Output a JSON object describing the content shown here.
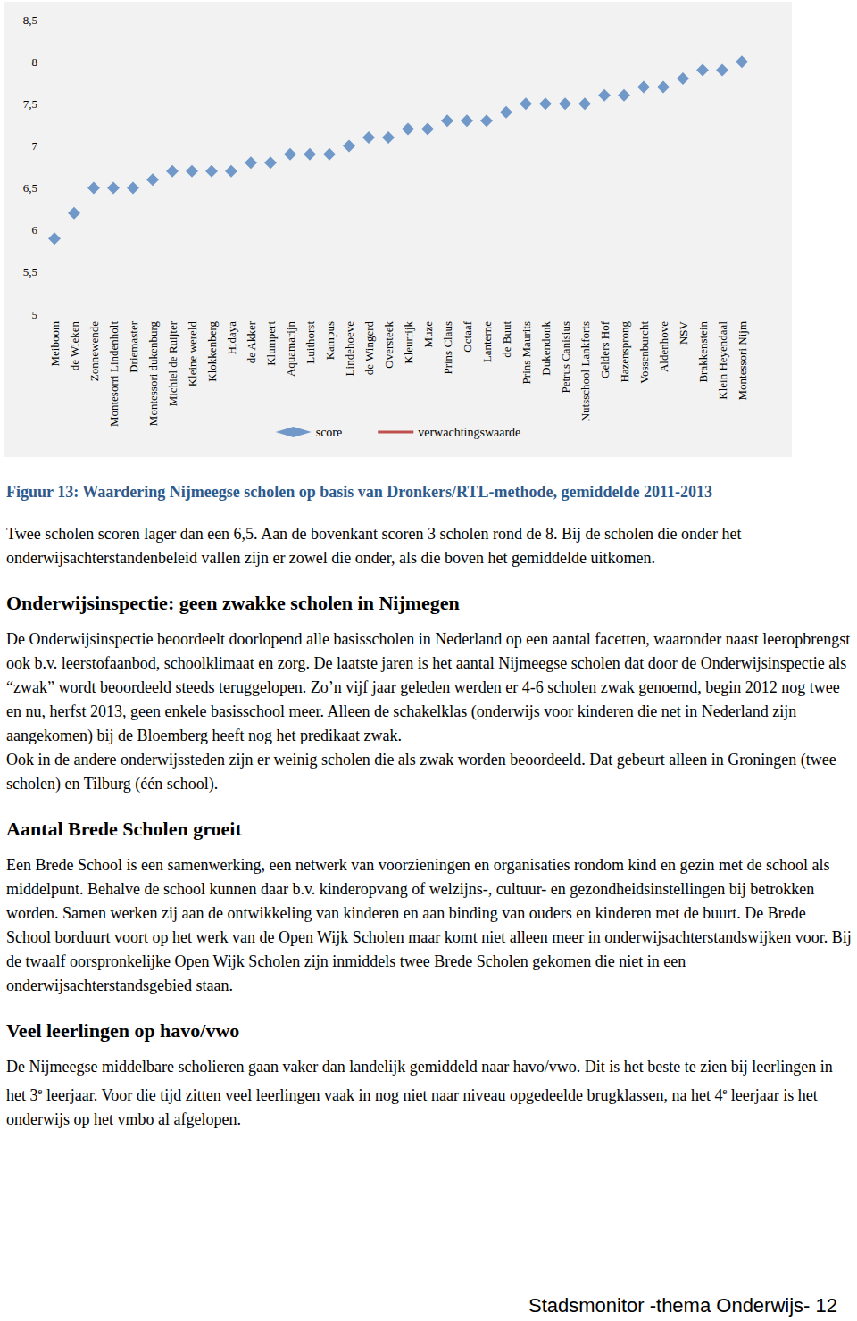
{
  "chart_data": {
    "type": "scatter",
    "categories": [
      "Meiboom",
      "de Wieken",
      "Zonnewende",
      "Montesorri Lindenholt",
      "Driemaster",
      "Montessori dukenburg",
      "Michiel de Ruijter",
      "Kleine wereld",
      "Klokkenberg",
      "Hidaya",
      "de Akker",
      "Klumpert",
      "Aquamarijn",
      "Luithorst",
      "Kampus",
      "Lindehoeve",
      "de Wingerd",
      "Oversteek",
      "Kleurrijk",
      "Muze",
      "Prins Claus",
      "Octaaf",
      "Lanterne",
      "de Buut",
      "Prins Maurits",
      "Dukendonk",
      "Petrus Canisius",
      "Nutsschool Lankforts",
      "Gelders Hof",
      "Hazensprong",
      "Vossenburcht",
      "Aldenhove",
      "NSV",
      "Brakkenstein",
      "Klein Heyendaal",
      "Montessori Nijm"
    ],
    "series": [
      {
        "name": "score",
        "color": "#4f81bd",
        "marker": "diamond",
        "values": [
          5.9,
          6.2,
          6.5,
          6.5,
          6.5,
          6.6,
          6.7,
          6.7,
          6.7,
          6.7,
          6.8,
          6.8,
          6.9,
          6.9,
          6.9,
          7.0,
          7.1,
          7.1,
          7.2,
          7.2,
          7.3,
          7.3,
          7.3,
          7.4,
          7.5,
          7.5,
          7.5,
          7.5,
          7.6,
          7.6,
          7.7,
          7.7,
          7.8,
          7.9,
          7.9,
          8.0
        ]
      },
      {
        "name": "verwachtingswaarde",
        "color": "#c0504d",
        "type": "line",
        "line_style": "solid",
        "values": [
          null,
          null,
          null,
          null,
          null,
          null,
          null,
          null,
          null,
          null,
          null,
          null,
          null,
          null,
          null,
          null,
          null,
          null,
          null,
          null,
          null,
          null,
          null,
          null,
          null,
          null,
          null,
          null,
          null,
          null,
          null,
          null,
          null,
          null,
          null,
          null
        ]
      }
    ],
    "ylim": [
      5,
      8.5
    ],
    "yticks": [
      5,
      {
        "value": 5.5,
        "label": "5,5"
      },
      6,
      {
        "value": 6.5,
        "label": "6,5"
      },
      7,
      {
        "value": 7.5,
        "label": "7,5"
      },
      8,
      {
        "value": 8.5,
        "label": "8,5"
      }
    ],
    "grid": false,
    "legend": "bottom"
  },
  "document": {
    "caption": "Figuur 13: Waardering Nijmeegse scholen op basis van Dronkers/RTL-methode, gemiddelde 2011-2013",
    "sections": [
      {
        "paragraphs": [
          "Twee scholen scoren lager dan een 6,5. Aan de bovenkant scoren 3 scholen rond de 8. Bij de scholen die onder het onderwijsachterstandenbeleid vallen zijn er zowel die onder, als die boven het gemiddelde uitkomen."
        ]
      },
      {
        "heading": "Onderwijsinspectie: geen zwakke scholen in Nijmegen",
        "paragraphs": [
          "De Onderwijsinspectie beoordeelt doorlopend alle basisscholen in Nederland op een aantal facetten, waaronder naast leeropbrengst ook b.v. leerstofaanbod, schoolklimaat en zorg. De laatste jaren is het aantal Nijmeegse scholen dat door de Onderwijsinspectie als “zwak” wordt beoordeeld steeds teruggelopen. Zo’n vijf jaar geleden werden er 4-6 scholen zwak genoemd, begin 2012 nog twee en nu, herfst 2013, geen enkele basisschool meer. Alleen de schakelklas (onderwijs voor kinderen die net in Nederland zijn aangekomen) bij de Bloemberg heeft nog het predikaat zwak.",
          "Ook in de andere onderwijssteden zijn er weinig scholen die als zwak worden beoordeeld. Dat gebeurt alleen in Groningen (twee scholen) en Tilburg (één school)."
        ]
      },
      {
        "heading": "Aantal Brede Scholen groeit",
        "paragraphs": [
          "Een Brede School is een samenwerking, een netwerk van voorzieningen en organisaties rondom kind en gezin met de school als middelpunt. Behalve de school kunnen daar b.v. kinderopvang of welzijns-, cultuur- en gezondheidsinstellingen bij betrokken worden. Samen werken zij aan de ontwikkeling van kinderen en aan binding van ouders en kinderen met de buurt. De Brede School borduurt voort op het werk van de Open Wijk Scholen maar komt niet alleen meer in onderwijsachterstandswijken voor. Bij de twaalf oorspronkelijke Open Wijk Scholen zijn inmiddels twee Brede Scholen gekomen die niet in een onderwijsachterstandsgebied staan."
        ]
      },
      {
        "heading": "Veel leerlingen op havo/vwo",
        "paragraphs": [
          [
            {
              "text": "De Nijmeegse middelbare scholieren gaan vaker dan landelijk gemiddeld naar havo/vwo. Dit is het beste te zien bij leerlingen in het 3"
            },
            {
              "sup": "e"
            },
            {
              "text": " leerjaar. Voor die tijd zitten veel leerlingen vaak in nog niet naar niveau opgedeelde brugklassen, na het 4"
            },
            {
              "sup": "e"
            },
            {
              "text": " leerjaar is het onderwijs op het vmbo al afgelopen."
            }
          ]
        ]
      }
    ],
    "footer": "Stadsmonitor -thema Onderwijs- 12"
  }
}
